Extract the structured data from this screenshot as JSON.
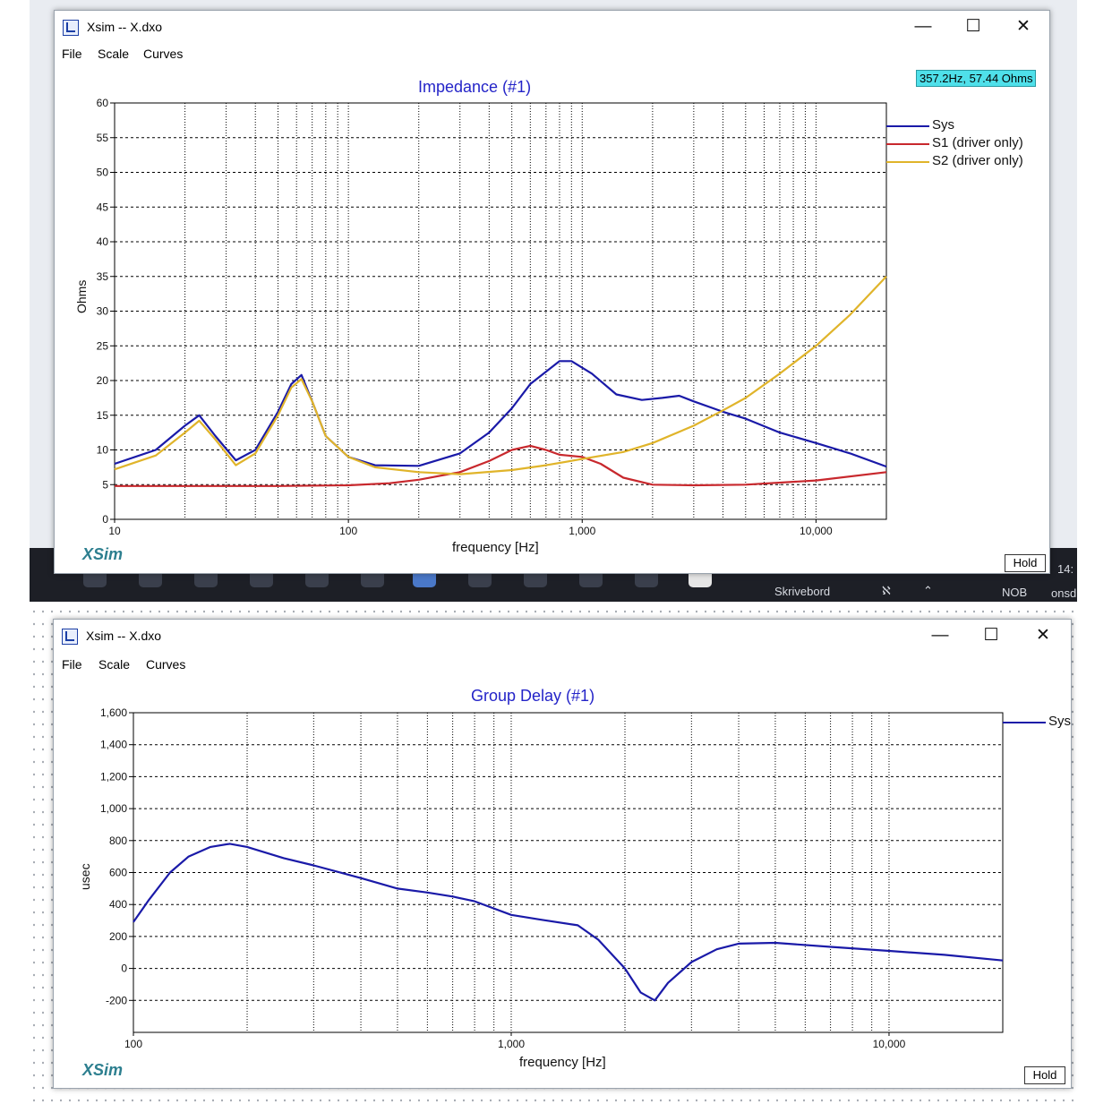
{
  "windows": [
    {
      "id": "impedance",
      "title": "Xsim -- X.dxo",
      "menu": [
        "File",
        "Scale",
        "Curves"
      ],
      "cursor_readout": "357.2Hz, 57.44 Ohms",
      "brand": "XSim",
      "hold_label": "Hold"
    },
    {
      "id": "groupdelay",
      "title": "Xsim -- X.dxo",
      "menu": [
        "File",
        "Scale",
        "Curves"
      ],
      "brand": "XSim",
      "hold_label": "Hold"
    }
  ],
  "taskbar": {
    "desktop_label": "Skrivebord",
    "lang": "NOB",
    "clock_fragment": "14:",
    "date_fragment": "onsd"
  },
  "window_controls": {
    "minimize": "—",
    "maximize": "☐",
    "close": "✕"
  },
  "chart_data": [
    {
      "type": "line",
      "title": "Impedance (#1)",
      "xlabel": "frequency [Hz]",
      "ylabel": "Ohms",
      "x_scale": "log",
      "xlim": [
        10,
        20000
      ],
      "ylim": [
        0,
        60
      ],
      "x_ticks": [
        10,
        100,
        1000,
        10000
      ],
      "x_tick_labels": [
        "10",
        "100",
        "1,000",
        "10,000"
      ],
      "y_ticks": [
        0,
        5,
        10,
        15,
        20,
        25,
        30,
        35,
        40,
        45,
        50,
        55,
        60
      ],
      "grid": true,
      "legend": "right",
      "series": [
        {
          "name": "Sys",
          "color": "#1a1aa8",
          "x": [
            10,
            15,
            20,
            23,
            27,
            33,
            40,
            50,
            57,
            63,
            70,
            80,
            100,
            130,
            200,
            300,
            400,
            500,
            600,
            800,
            900,
            1100,
            1400,
            1800,
            2200,
            2600,
            3000,
            4000,
            5000,
            7000,
            10000,
            14000,
            20000
          ],
          "y": [
            8,
            10,
            13.5,
            15,
            12,
            8.5,
            10,
            15.5,
            19.5,
            20.8,
            17,
            12,
            9,
            7.8,
            7.7,
            9.5,
            12.5,
            16,
            19.5,
            22.8,
            22.8,
            21,
            18,
            17.2,
            17.5,
            17.8,
            17,
            15.5,
            14.5,
            12.5,
            11,
            9.5,
            7.6
          ]
        },
        {
          "name": "S1 (driver only)",
          "color": "#c8282d",
          "x": [
            10,
            50,
            100,
            150,
            200,
            300,
            400,
            500,
            600,
            700,
            800,
            1000,
            1200,
            1500,
            2000,
            3000,
            5000,
            10000,
            20000
          ],
          "y": [
            4.8,
            4.8,
            4.9,
            5.2,
            5.7,
            6.8,
            8.4,
            10,
            10.6,
            10,
            9.3,
            9,
            8,
            6,
            5,
            4.9,
            5,
            5.6,
            6.8
          ]
        },
        {
          "name": "S2 (driver only)",
          "color": "#e0b42a",
          "x": [
            10,
            15,
            20,
            23,
            27,
            33,
            40,
            50,
            57,
            63,
            70,
            80,
            100,
            130,
            200,
            300,
            500,
            700,
            1000,
            1500,
            2000,
            3000,
            4000,
            5000,
            7000,
            10000,
            14000,
            20000
          ],
          "y": [
            7.2,
            9.2,
            12.5,
            14.2,
            11.5,
            7.8,
            9.5,
            15,
            19,
            20.2,
            17,
            12,
            9,
            7.5,
            6.8,
            6.5,
            7.1,
            7.8,
            8.7,
            9.7,
            11,
            13.5,
            15.7,
            17.5,
            21,
            25,
            29.5,
            35
          ]
        }
      ]
    },
    {
      "type": "line",
      "title": "Group Delay (#1)",
      "xlabel": "frequency [Hz]",
      "ylabel": "usec",
      "x_scale": "log",
      "xlim": [
        100,
        20000
      ],
      "ylim": [
        -400,
        1600
      ],
      "x_ticks": [
        100,
        1000,
        10000
      ],
      "x_tick_labels": [
        "100",
        "1,000",
        "10,000"
      ],
      "y_ticks": [
        -200,
        0,
        200,
        400,
        600,
        800,
        1000,
        1200,
        1400,
        1600
      ],
      "y_tick_labels": [
        "-200",
        "0",
        "200",
        "400",
        "600",
        "800",
        "1,000",
        "1,200",
        "1,400",
        "1,600"
      ],
      "grid": true,
      "legend": "top-right",
      "series": [
        {
          "name": "Sys",
          "color": "#1a1aa8",
          "x": [
            100,
            110,
            125,
            140,
            160,
            180,
            200,
            250,
            300,
            400,
            500,
            600,
            700,
            800,
            1000,
            1200,
            1500,
            1700,
            2000,
            2200,
            2400,
            2600,
            3000,
            3500,
            4000,
            5000,
            7000,
            10000,
            14000,
            20000
          ],
          "y": [
            290,
            430,
            600,
            700,
            760,
            780,
            760,
            690,
            645,
            565,
            500,
            475,
            450,
            420,
            335,
            305,
            270,
            180,
            0,
            -150,
            -200,
            -90,
            40,
            120,
            155,
            160,
            135,
            110,
            85,
            50
          ]
        }
      ]
    }
  ]
}
